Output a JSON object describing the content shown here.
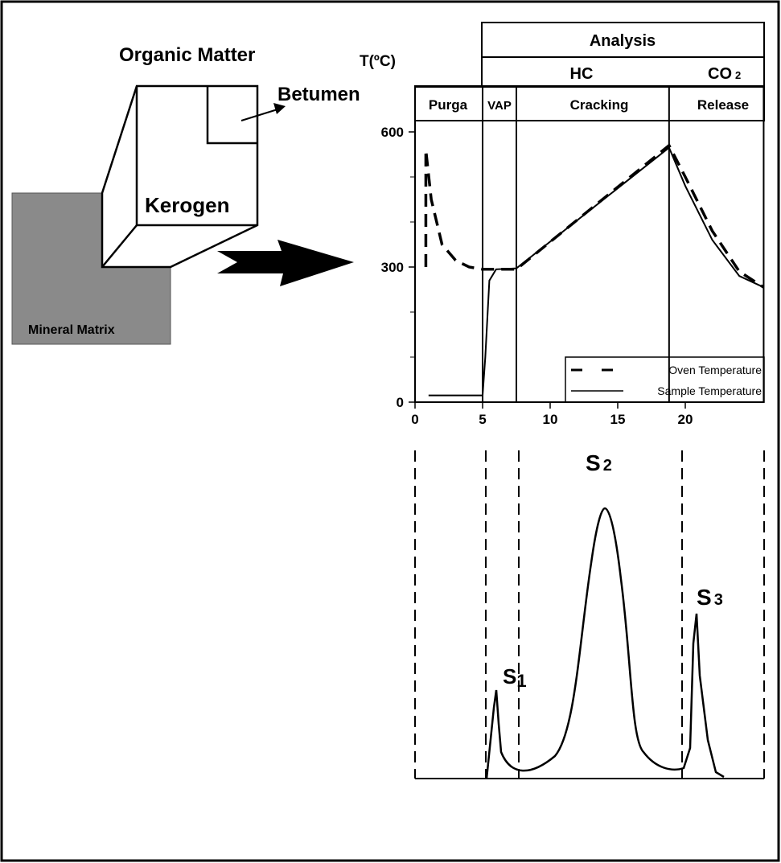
{
  "diagram": {
    "organic_matter": "Organic Matter",
    "betumen": "Betumen",
    "kerogen": "Kerogen",
    "mineral_matrix": "Mineral Matrix"
  },
  "headers": {
    "analysis": "Analysis",
    "hc": "HC",
    "co2": {
      "main": "CO",
      "sub": "2"
    },
    "purga": "Purga",
    "vap": "VAP",
    "cracking": "Cracking",
    "release": "Release"
  },
  "temperature_chart": {
    "ylabel": "T(ºC)",
    "xlim": [
      0,
      25.8
    ],
    "ylim": [
      0,
      700
    ],
    "xticks": [
      0,
      5,
      10,
      15,
      20
    ],
    "yticks": [
      0,
      300,
      600
    ],
    "yminor": [
      100,
      200,
      400,
      500
    ],
    "phase_bounds": [
      5,
      7.5,
      18.8
    ],
    "curves": [
      {
        "name": "Oven Temperature",
        "style": "dashed",
        "x": [
          0.8,
          0.8,
          1.2,
          2,
          3,
          4,
          5,
          7.5,
          18.8,
          20,
          22,
          24,
          25.8
        ],
        "y": [
          300,
          560,
          450,
          350,
          315,
          300,
          295,
          295,
          570,
          500,
          380,
          290,
          255
        ]
      },
      {
        "name": "Sample Temperature",
        "style": "solid",
        "x": [
          1,
          5,
          5.2,
          5.5,
          6,
          7.5,
          18.8,
          20,
          22,
          24,
          25.8
        ],
        "y": [
          15,
          15,
          100,
          270,
          295,
          297,
          565,
          480,
          360,
          280,
          255
        ]
      }
    ]
  },
  "pyrogram": {
    "s1": {
      "main": "S",
      "sub": "1"
    },
    "s2": {
      "main": "S",
      "sub": "2"
    },
    "s3": {
      "main": "S",
      "sub": "3"
    }
  }
}
